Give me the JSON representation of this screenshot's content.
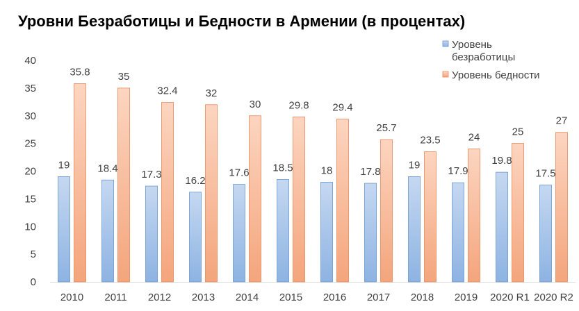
{
  "chart_data": {
    "type": "bar",
    "title": "Уровни Безработицы и Бедности в Армении (в процентах)",
    "categories": [
      "2010",
      "2011",
      "2012",
      "2013",
      "2014",
      "2015",
      "2016",
      "2017",
      "2018",
      "2019",
      "2020 R1",
      "2020 R2"
    ],
    "series": [
      {
        "name": "Уровень безработицы",
        "values": [
          19,
          18.4,
          17.3,
          16.2,
          17.6,
          18.5,
          18,
          17.8,
          19,
          17.9,
          19.8,
          17.5
        ],
        "labels": [
          "19",
          "18.4",
          "17.3",
          "16.2",
          "17.6",
          "18.5",
          "18",
          "17.8",
          "19",
          "17.9",
          "19.8",
          "17.5"
        ],
        "color_top": "#c5d8f1",
        "color_bottom": "#8db3e2",
        "stroke": "#6a95cf"
      },
      {
        "name": "Уровень бедности",
        "values": [
          35.8,
          35,
          32.4,
          32,
          30,
          29.8,
          29.4,
          25.7,
          23.5,
          24,
          25,
          27
        ],
        "labels": [
          "35.8",
          "35",
          "32.4",
          "32",
          "30",
          "29.8",
          "29.4",
          "25.7",
          "23.5",
          "24",
          "25",
          "27"
        ],
        "color_top": "#fcd5c0",
        "color_bottom": "#f4a57c",
        "stroke": "#e8875a"
      }
    ],
    "ylim": [
      0,
      40
    ],
    "yticks": [
      "0",
      "5",
      "10",
      "15",
      "20",
      "25",
      "30",
      "35",
      "40"
    ],
    "xlabel": "",
    "ylabel": "",
    "grid": false,
    "legend_position": "top-right",
    "legend": [
      {
        "lines": [
          "Уровень",
          "безработицы"
        ]
      },
      {
        "lines": [
          "Уровень бедности"
        ]
      }
    ]
  }
}
